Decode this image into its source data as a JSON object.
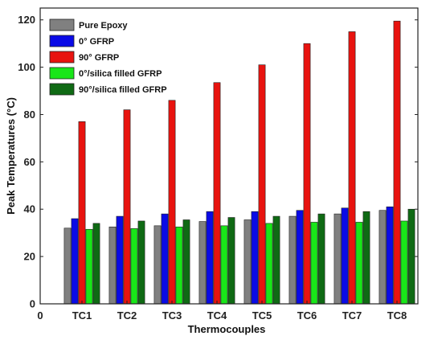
{
  "chart_data": {
    "type": "bar",
    "categories": [
      "TC1",
      "TC2",
      "TC3",
      "TC4",
      "TC5",
      "TC6",
      "TC7",
      "TC8"
    ],
    "series": [
      {
        "name": "Pure Epoxy",
        "color": "#808080",
        "values": [
          32,
          32.5,
          33,
          34.8,
          35.5,
          37,
          38,
          39.5
        ]
      },
      {
        "name": "0° GFRP",
        "color": "#0a0ae6",
        "values": [
          36,
          37,
          38,
          39,
          39,
          39.5,
          40.5,
          41
        ]
      },
      {
        "name": "90° GFRP",
        "color": "#e8130f",
        "values": [
          77,
          82,
          86,
          93.5,
          101,
          110,
          115,
          119.5
        ]
      },
      {
        "name": "0°/silica filled GFRP",
        "color": "#19e619",
        "values": [
          31.5,
          31.8,
          32.5,
          33,
          34,
          34.5,
          34.5,
          35
        ]
      },
      {
        "name": "90°/silica filled GFRP",
        "color": "#0f6a14",
        "values": [
          34,
          35,
          35.5,
          36.5,
          37,
          38,
          39,
          40
        ]
      }
    ],
    "xlabel": "Thermocouples",
    "ylabel": "Peak Temperatures (°C)",
    "ylim": [
      0,
      125
    ],
    "yticks": [
      0,
      20,
      40,
      60,
      80,
      100,
      120
    ],
    "x_origin_label": "0",
    "legend_position": "top-left",
    "grid": false
  }
}
